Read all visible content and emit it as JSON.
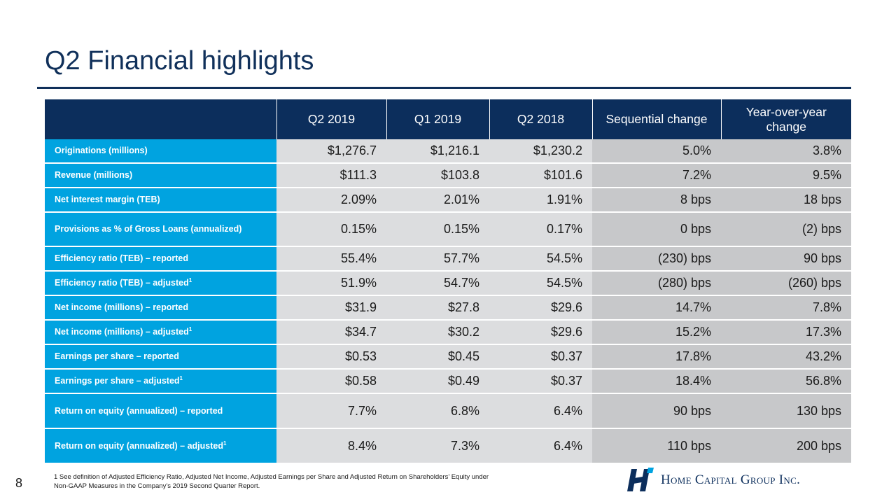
{
  "title": "Q2 Financial highlights",
  "table": {
    "headers": [
      "",
      "Q2 2019",
      "Q1 2019",
      "Q2 2018",
      "Sequential change",
      "Year-over-year change"
    ],
    "rows": [
      {
        "label": "Originations (millions)",
        "sup": "",
        "values": [
          "$1,276.7",
          "$1,216.1",
          "$1,230.2",
          "5.0%",
          "3.8%"
        ]
      },
      {
        "label": "Revenue (millions)",
        "sup": "",
        "values": [
          "$111.3",
          "$103.8",
          "$101.6",
          "7.2%",
          "9.5%"
        ]
      },
      {
        "label": "Net interest margin (TEB)",
        "sup": "",
        "values": [
          "2.09%",
          "2.01%",
          "1.91%",
          "8 bps",
          "18 bps"
        ]
      },
      {
        "label": "Provisions as % of Gross Loans (annualized)",
        "sup": "",
        "values": [
          "0.15%",
          "0.15%",
          "0.17%",
          "0 bps",
          "(2) bps"
        ]
      },
      {
        "label": "Efficiency ratio (TEB) – reported",
        "sup": "",
        "values": [
          "55.4%",
          "57.7%",
          "54.5%",
          "(230) bps",
          "90 bps"
        ]
      },
      {
        "label": "Efficiency ratio (TEB) – adjusted",
        "sup": "1",
        "values": [
          "51.9%",
          "54.7%",
          "54.5%",
          "(280) bps",
          "(260) bps"
        ]
      },
      {
        "label": "Net income (millions) – reported",
        "sup": "",
        "values": [
          "$31.9",
          "$27.8",
          "$29.6",
          "14.7%",
          "7.8%"
        ]
      },
      {
        "label": "Net income (millions) – adjusted",
        "sup": "1",
        "values": [
          "$34.7",
          "$30.2",
          "$29.6",
          "15.2%",
          "17.3%"
        ]
      },
      {
        "label": "Earnings per share – reported",
        "sup": "",
        "values": [
          "$0.53",
          "$0.45",
          "$0.37",
          "17.8%",
          "43.2%"
        ]
      },
      {
        "label": "Earnings per share – adjusted",
        "sup": "1",
        "values": [
          "$0.58",
          "$0.49",
          "$0.37",
          "18.4%",
          "56.8%"
        ]
      },
      {
        "label": "Return on equity (annualized) – reported",
        "sup": "",
        "values": [
          "7.7%",
          "6.8%",
          "6.4%",
          "90 bps",
          "130 bps"
        ]
      },
      {
        "label": "Return on equity (annualized) – adjusted",
        "sup": "1",
        "values": [
          "8.4%",
          "7.3%",
          "6.4%",
          "110 bps",
          "200 bps"
        ]
      }
    ]
  },
  "footnote": {
    "line1": "1 See definition of Adjusted Efficiency Ratio, Adjusted Net Income, Adjusted Earnings per Share and Adjusted Return on Shareholders’ Equity under",
    "line2": "Non-GAAP Measures in the Company’s 2019 Second Quarter Report."
  },
  "page_number": "8",
  "logo": {
    "text": "Home Capital Group Inc.",
    "icon": "home-capital-h-logo-icon"
  },
  "colors": {
    "navy": "#0c2e5c",
    "cyan": "#00a3e0",
    "light_gray": "#dcdddf",
    "mid_gray": "#c7c8ca"
  }
}
